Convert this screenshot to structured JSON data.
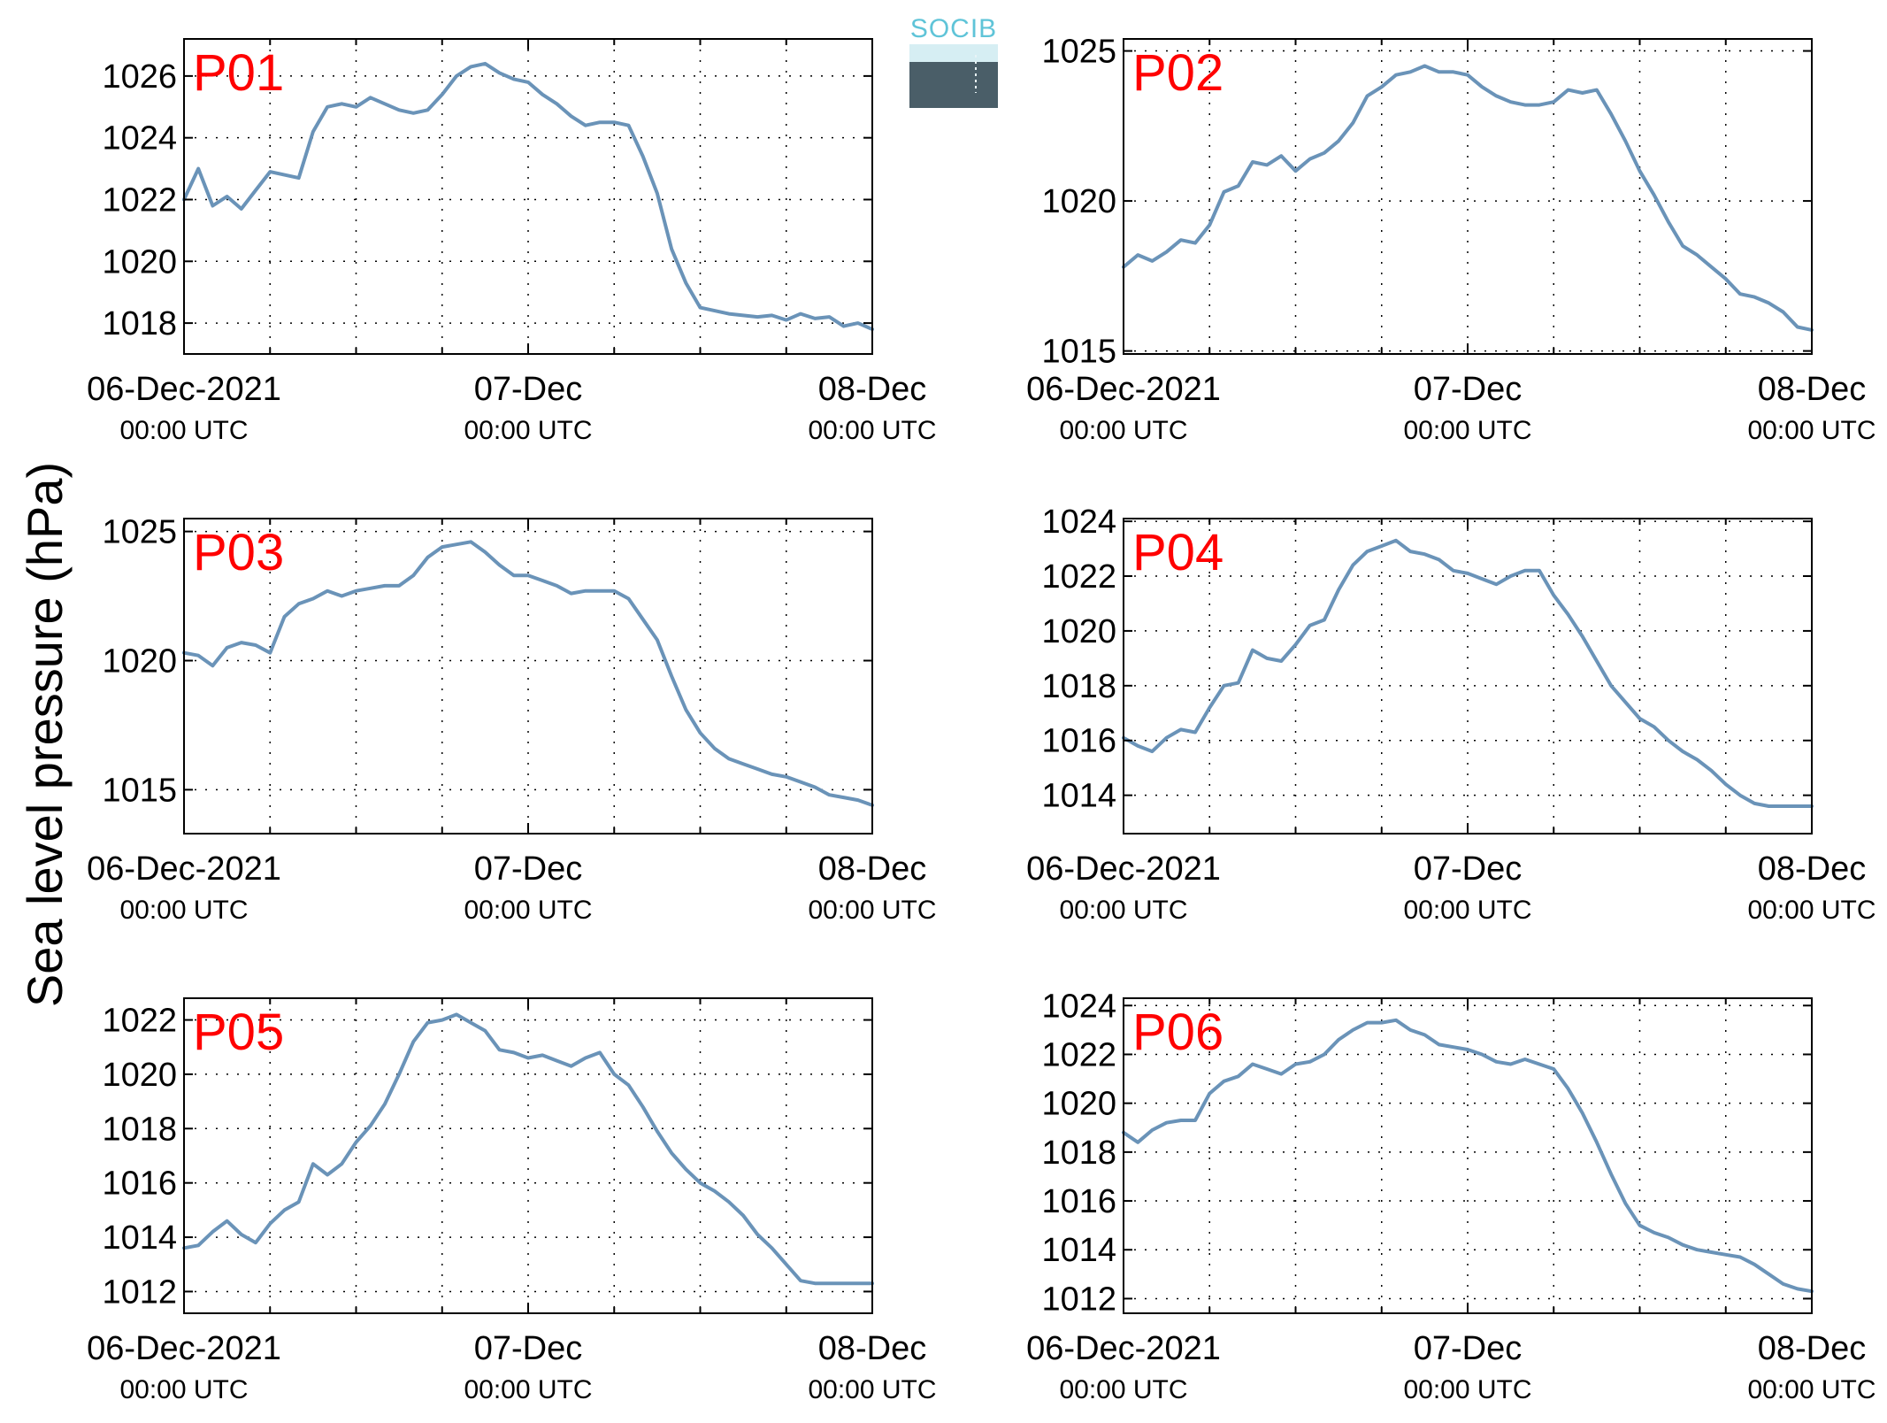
{
  "ylabel": "Sea level pressure (hPa)",
  "logo": {
    "text": "SOCIB"
  },
  "colors": {
    "line": "#6a93b8",
    "panel_label": "#ff0000",
    "grid": "#000000"
  },
  "x_ticks": [
    {
      "date": "06-Dec-2021",
      "time": "00:00 UTC"
    },
    {
      "date": "07-Dec",
      "time": "00:00 UTC"
    },
    {
      "date": "08-Dec",
      "time": "00:00 UTC"
    }
  ],
  "chart_data": [
    {
      "type": "line",
      "label": "P01",
      "grid": true,
      "xlim": [
        "2021-12-06 00:00",
        "2021-12-08 00:00"
      ],
      "ylim": [
        1017,
        1027.2
      ],
      "yticks": [
        1018,
        1020,
        1022,
        1024,
        1026
      ],
      "x": [
        "2021-12-06 00:00",
        "2021-12-06 01:00",
        "2021-12-06 02:00",
        "2021-12-06 03:00",
        "2021-12-06 04:00",
        "2021-12-06 05:00",
        "2021-12-06 06:00",
        "2021-12-06 07:00",
        "2021-12-06 08:00",
        "2021-12-06 09:00",
        "2021-12-06 10:00",
        "2021-12-06 11:00",
        "2021-12-06 12:00",
        "2021-12-06 13:00",
        "2021-12-06 14:00",
        "2021-12-06 15:00",
        "2021-12-06 16:00",
        "2021-12-06 17:00",
        "2021-12-06 18:00",
        "2021-12-06 19:00",
        "2021-12-06 20:00",
        "2021-12-06 21:00",
        "2021-12-06 22:00",
        "2021-12-06 23:00",
        "2021-12-07 00:00",
        "2021-12-07 01:00",
        "2021-12-07 02:00",
        "2021-12-07 03:00",
        "2021-12-07 04:00",
        "2021-12-07 05:00",
        "2021-12-07 06:00",
        "2021-12-07 07:00",
        "2021-12-07 08:00",
        "2021-12-07 09:00",
        "2021-12-07 10:00",
        "2021-12-07 11:00",
        "2021-12-07 12:00",
        "2021-12-07 13:00",
        "2021-12-07 14:00",
        "2021-12-07 15:00",
        "2021-12-07 16:00",
        "2021-12-07 17:00",
        "2021-12-07 18:00",
        "2021-12-07 19:00",
        "2021-12-07 20:00",
        "2021-12-07 21:00",
        "2021-12-07 22:00",
        "2021-12-07 23:00",
        "2021-12-08 00:00"
      ],
      "series": [
        {
          "values": [
            1022.0,
            1023.0,
            1021.8,
            1022.1,
            1021.7,
            1022.3,
            1022.9,
            1022.8,
            1022.7,
            1024.2,
            1025.0,
            1025.1,
            1025.0,
            1025.3,
            1025.1,
            1024.9,
            1024.8,
            1024.9,
            1025.4,
            1026.0,
            1026.3,
            1026.4,
            1026.1,
            1025.9,
            1025.8,
            1025.4,
            1025.1,
            1024.7,
            1024.4,
            1024.5,
            1024.5,
            1024.4,
            1023.4,
            1022.2,
            1020.4,
            1019.3,
            1018.5,
            1018.4,
            1018.3,
            1018.25,
            1018.2,
            1018.25,
            1018.1,
            1018.3,
            1018.15,
            1018.2,
            1017.9,
            1018.0,
            1017.8
          ]
        }
      ]
    },
    {
      "type": "line",
      "label": "P02",
      "grid": true,
      "xlim": [
        "2021-12-06 00:00",
        "2021-12-08 00:00"
      ],
      "ylim": [
        1014.9,
        1025.4
      ],
      "yticks": [
        1015,
        1020,
        1025
      ],
      "x": [
        "2021-12-06 00:00",
        "2021-12-06 01:00",
        "2021-12-06 02:00",
        "2021-12-06 03:00",
        "2021-12-06 04:00",
        "2021-12-06 05:00",
        "2021-12-06 06:00",
        "2021-12-06 07:00",
        "2021-12-06 08:00",
        "2021-12-06 09:00",
        "2021-12-06 10:00",
        "2021-12-06 11:00",
        "2021-12-06 12:00",
        "2021-12-06 13:00",
        "2021-12-06 14:00",
        "2021-12-06 15:00",
        "2021-12-06 16:00",
        "2021-12-06 17:00",
        "2021-12-06 18:00",
        "2021-12-06 19:00",
        "2021-12-06 20:00",
        "2021-12-06 21:00",
        "2021-12-06 22:00",
        "2021-12-06 23:00",
        "2021-12-07 00:00",
        "2021-12-07 01:00",
        "2021-12-07 02:00",
        "2021-12-07 03:00",
        "2021-12-07 04:00",
        "2021-12-07 05:00",
        "2021-12-07 06:00",
        "2021-12-07 07:00",
        "2021-12-07 08:00",
        "2021-12-07 09:00",
        "2021-12-07 10:00",
        "2021-12-07 11:00",
        "2021-12-07 12:00",
        "2021-12-07 13:00",
        "2021-12-07 14:00",
        "2021-12-07 15:00",
        "2021-12-07 16:00",
        "2021-12-07 17:00",
        "2021-12-07 18:00",
        "2021-12-07 19:00",
        "2021-12-07 20:00",
        "2021-12-07 21:00",
        "2021-12-07 22:00",
        "2021-12-07 23:00",
        "2021-12-08 00:00"
      ],
      "series": [
        {
          "values": [
            1017.8,
            1018.2,
            1018.0,
            1018.3,
            1018.7,
            1018.6,
            1019.2,
            1020.3,
            1020.5,
            1021.3,
            1021.2,
            1021.5,
            1021.0,
            1021.4,
            1021.6,
            1022.0,
            1022.6,
            1023.5,
            1023.8,
            1024.2,
            1024.3,
            1024.5,
            1024.3,
            1024.3,
            1024.2,
            1023.8,
            1023.5,
            1023.3,
            1023.2,
            1023.2,
            1023.3,
            1023.7,
            1023.6,
            1023.7,
            1022.9,
            1022.0,
            1021.0,
            1020.2,
            1019.3,
            1018.5,
            1018.2,
            1017.8,
            1017.4,
            1016.9,
            1016.8,
            1016.6,
            1016.3,
            1015.8,
            1015.7
          ]
        }
      ]
    },
    {
      "type": "line",
      "label": "P03",
      "grid": true,
      "xlim": [
        "2021-12-06 00:00",
        "2021-12-08 00:00"
      ],
      "ylim": [
        1013.3,
        1025.5
      ],
      "yticks": [
        1015,
        1020,
        1025
      ],
      "x": [
        "2021-12-06 00:00",
        "2021-12-06 01:00",
        "2021-12-06 02:00",
        "2021-12-06 03:00",
        "2021-12-06 04:00",
        "2021-12-06 05:00",
        "2021-12-06 06:00",
        "2021-12-06 07:00",
        "2021-12-06 08:00",
        "2021-12-06 09:00",
        "2021-12-06 10:00",
        "2021-12-06 11:00",
        "2021-12-06 12:00",
        "2021-12-06 13:00",
        "2021-12-06 14:00",
        "2021-12-06 15:00",
        "2021-12-06 16:00",
        "2021-12-06 17:00",
        "2021-12-06 18:00",
        "2021-12-06 19:00",
        "2021-12-06 20:00",
        "2021-12-06 21:00",
        "2021-12-06 22:00",
        "2021-12-06 23:00",
        "2021-12-07 00:00",
        "2021-12-07 01:00",
        "2021-12-07 02:00",
        "2021-12-07 03:00",
        "2021-12-07 04:00",
        "2021-12-07 05:00",
        "2021-12-07 06:00",
        "2021-12-07 07:00",
        "2021-12-07 08:00",
        "2021-12-07 09:00",
        "2021-12-07 10:00",
        "2021-12-07 11:00",
        "2021-12-07 12:00",
        "2021-12-07 13:00",
        "2021-12-07 14:00",
        "2021-12-07 15:00",
        "2021-12-07 16:00",
        "2021-12-07 17:00",
        "2021-12-07 18:00",
        "2021-12-07 19:00",
        "2021-12-07 20:00",
        "2021-12-07 21:00",
        "2021-12-07 22:00",
        "2021-12-07 23:00",
        "2021-12-08 00:00"
      ],
      "series": [
        {
          "values": [
            1020.3,
            1020.2,
            1019.8,
            1020.5,
            1020.7,
            1020.6,
            1020.3,
            1021.7,
            1022.2,
            1022.4,
            1022.7,
            1022.5,
            1022.7,
            1022.8,
            1022.9,
            1022.9,
            1023.3,
            1024.0,
            1024.4,
            1024.5,
            1024.6,
            1024.2,
            1023.7,
            1023.3,
            1023.3,
            1023.1,
            1022.9,
            1022.6,
            1022.7,
            1022.7,
            1022.7,
            1022.4,
            1021.6,
            1020.8,
            1019.4,
            1018.1,
            1017.2,
            1016.6,
            1016.2,
            1016.0,
            1015.8,
            1015.6,
            1015.5,
            1015.3,
            1015.1,
            1014.8,
            1014.7,
            1014.6,
            1014.4
          ]
        }
      ]
    },
    {
      "type": "line",
      "label": "P04",
      "grid": true,
      "xlim": [
        "2021-12-06 00:00",
        "2021-12-08 00:00"
      ],
      "ylim": [
        1012.6,
        1024.1
      ],
      "yticks": [
        1014,
        1016,
        1018,
        1020,
        1022,
        1024
      ],
      "x": [
        "2021-12-06 00:00",
        "2021-12-06 01:00",
        "2021-12-06 02:00",
        "2021-12-06 03:00",
        "2021-12-06 04:00",
        "2021-12-06 05:00",
        "2021-12-06 06:00",
        "2021-12-06 07:00",
        "2021-12-06 08:00",
        "2021-12-06 09:00",
        "2021-12-06 10:00",
        "2021-12-06 11:00",
        "2021-12-06 12:00",
        "2021-12-06 13:00",
        "2021-12-06 14:00",
        "2021-12-06 15:00",
        "2021-12-06 16:00",
        "2021-12-06 17:00",
        "2021-12-06 18:00",
        "2021-12-06 19:00",
        "2021-12-06 20:00",
        "2021-12-06 21:00",
        "2021-12-06 22:00",
        "2021-12-06 23:00",
        "2021-12-07 00:00",
        "2021-12-07 01:00",
        "2021-12-07 02:00",
        "2021-12-07 03:00",
        "2021-12-07 04:00",
        "2021-12-07 05:00",
        "2021-12-07 06:00",
        "2021-12-07 07:00",
        "2021-12-07 08:00",
        "2021-12-07 09:00",
        "2021-12-07 10:00",
        "2021-12-07 11:00",
        "2021-12-07 12:00",
        "2021-12-07 13:00",
        "2021-12-07 14:00",
        "2021-12-07 15:00",
        "2021-12-07 16:00",
        "2021-12-07 17:00",
        "2021-12-07 18:00",
        "2021-12-07 19:00",
        "2021-12-07 20:00",
        "2021-12-07 21:00",
        "2021-12-07 22:00",
        "2021-12-07 23:00",
        "2021-12-08 00:00"
      ],
      "series": [
        {
          "values": [
            1016.1,
            1015.8,
            1015.6,
            1016.1,
            1016.4,
            1016.3,
            1017.2,
            1018.0,
            1018.1,
            1019.3,
            1019.0,
            1018.9,
            1019.5,
            1020.2,
            1020.4,
            1021.5,
            1022.4,
            1022.9,
            1023.1,
            1023.3,
            1022.9,
            1022.8,
            1022.6,
            1022.2,
            1022.1,
            1021.9,
            1021.7,
            1022.0,
            1022.2,
            1022.2,
            1021.3,
            1020.6,
            1019.8,
            1018.9,
            1018.0,
            1017.4,
            1016.8,
            1016.5,
            1016.0,
            1015.6,
            1015.3,
            1014.9,
            1014.4,
            1014.0,
            1013.7,
            1013.6,
            1013.6,
            1013.6,
            1013.6
          ]
        }
      ]
    },
    {
      "type": "line",
      "label": "P05",
      "grid": true,
      "xlim": [
        "2021-12-06 00:00",
        "2021-12-08 00:00"
      ],
      "ylim": [
        1011.2,
        1022.8
      ],
      "yticks": [
        1012,
        1014,
        1016,
        1018,
        1020,
        1022
      ],
      "x": [
        "2021-12-06 00:00",
        "2021-12-06 01:00",
        "2021-12-06 02:00",
        "2021-12-06 03:00",
        "2021-12-06 04:00",
        "2021-12-06 05:00",
        "2021-12-06 06:00",
        "2021-12-06 07:00",
        "2021-12-06 08:00",
        "2021-12-06 09:00",
        "2021-12-06 10:00",
        "2021-12-06 11:00",
        "2021-12-06 12:00",
        "2021-12-06 13:00",
        "2021-12-06 14:00",
        "2021-12-06 15:00",
        "2021-12-06 16:00",
        "2021-12-06 17:00",
        "2021-12-06 18:00",
        "2021-12-06 19:00",
        "2021-12-06 20:00",
        "2021-12-06 21:00",
        "2021-12-06 22:00",
        "2021-12-06 23:00",
        "2021-12-07 00:00",
        "2021-12-07 01:00",
        "2021-12-07 02:00",
        "2021-12-07 03:00",
        "2021-12-07 04:00",
        "2021-12-07 05:00",
        "2021-12-07 06:00",
        "2021-12-07 07:00",
        "2021-12-07 08:00",
        "2021-12-07 09:00",
        "2021-12-07 10:00",
        "2021-12-07 11:00",
        "2021-12-07 12:00",
        "2021-12-07 13:00",
        "2021-12-07 14:00",
        "2021-12-07 15:00",
        "2021-12-07 16:00",
        "2021-12-07 17:00",
        "2021-12-07 18:00",
        "2021-12-07 19:00",
        "2021-12-07 20:00",
        "2021-12-07 21:00",
        "2021-12-07 22:00",
        "2021-12-07 23:00",
        "2021-12-08 00:00"
      ],
      "series": [
        {
          "values": [
            1013.6,
            1013.7,
            1014.2,
            1014.6,
            1014.1,
            1013.8,
            1014.5,
            1015.0,
            1015.3,
            1016.7,
            1016.3,
            1016.7,
            1017.5,
            1018.1,
            1018.9,
            1020.0,
            1021.2,
            1021.9,
            1022.0,
            1022.2,
            1021.9,
            1021.6,
            1020.9,
            1020.8,
            1020.6,
            1020.7,
            1020.5,
            1020.3,
            1020.6,
            1020.8,
            1020.0,
            1019.6,
            1018.8,
            1017.9,
            1017.1,
            1016.5,
            1016.0,
            1015.7,
            1015.3,
            1014.8,
            1014.1,
            1013.6,
            1013.0,
            1012.4,
            1012.3,
            1012.3,
            1012.3,
            1012.3,
            1012.3
          ]
        }
      ]
    },
    {
      "type": "line",
      "label": "P06",
      "grid": true,
      "xlim": [
        "2021-12-06 00:00",
        "2021-12-08 00:00"
      ],
      "ylim": [
        1011.4,
        1024.3
      ],
      "yticks": [
        1012,
        1014,
        1016,
        1018,
        1020,
        1022,
        1024
      ],
      "x": [
        "2021-12-06 00:00",
        "2021-12-06 01:00",
        "2021-12-06 02:00",
        "2021-12-06 03:00",
        "2021-12-06 04:00",
        "2021-12-06 05:00",
        "2021-12-06 06:00",
        "2021-12-06 07:00",
        "2021-12-06 08:00",
        "2021-12-06 09:00",
        "2021-12-06 10:00",
        "2021-12-06 11:00",
        "2021-12-06 12:00",
        "2021-12-06 13:00",
        "2021-12-06 14:00",
        "2021-12-06 15:00",
        "2021-12-06 16:00",
        "2021-12-06 17:00",
        "2021-12-06 18:00",
        "2021-12-06 19:00",
        "2021-12-06 20:00",
        "2021-12-06 21:00",
        "2021-12-06 22:00",
        "2021-12-06 23:00",
        "2021-12-07 00:00",
        "2021-12-07 01:00",
        "2021-12-07 02:00",
        "2021-12-07 03:00",
        "2021-12-07 04:00",
        "2021-12-07 05:00",
        "2021-12-07 06:00",
        "2021-12-07 07:00",
        "2021-12-07 08:00",
        "2021-12-07 09:00",
        "2021-12-07 10:00",
        "2021-12-07 11:00",
        "2021-12-07 12:00",
        "2021-12-07 13:00",
        "2021-12-07 14:00",
        "2021-12-07 15:00",
        "2021-12-07 16:00",
        "2021-12-07 17:00",
        "2021-12-07 18:00",
        "2021-12-07 19:00",
        "2021-12-07 20:00",
        "2021-12-07 21:00",
        "2021-12-07 22:00",
        "2021-12-07 23:00",
        "2021-12-08 00:00"
      ],
      "series": [
        {
          "values": [
            1018.8,
            1018.4,
            1018.9,
            1019.2,
            1019.3,
            1019.3,
            1020.4,
            1020.9,
            1021.1,
            1021.6,
            1021.4,
            1021.2,
            1021.6,
            1021.7,
            1022.0,
            1022.6,
            1023.0,
            1023.3,
            1023.3,
            1023.4,
            1023.0,
            1022.8,
            1022.4,
            1022.3,
            1022.2,
            1022.0,
            1021.7,
            1021.6,
            1021.8,
            1021.6,
            1021.4,
            1020.6,
            1019.6,
            1018.4,
            1017.1,
            1015.9,
            1015.0,
            1014.7,
            1014.5,
            1014.2,
            1014.0,
            1013.9,
            1013.8,
            1013.7,
            1013.4,
            1013.0,
            1012.6,
            1012.4,
            1012.3
          ]
        }
      ]
    }
  ]
}
